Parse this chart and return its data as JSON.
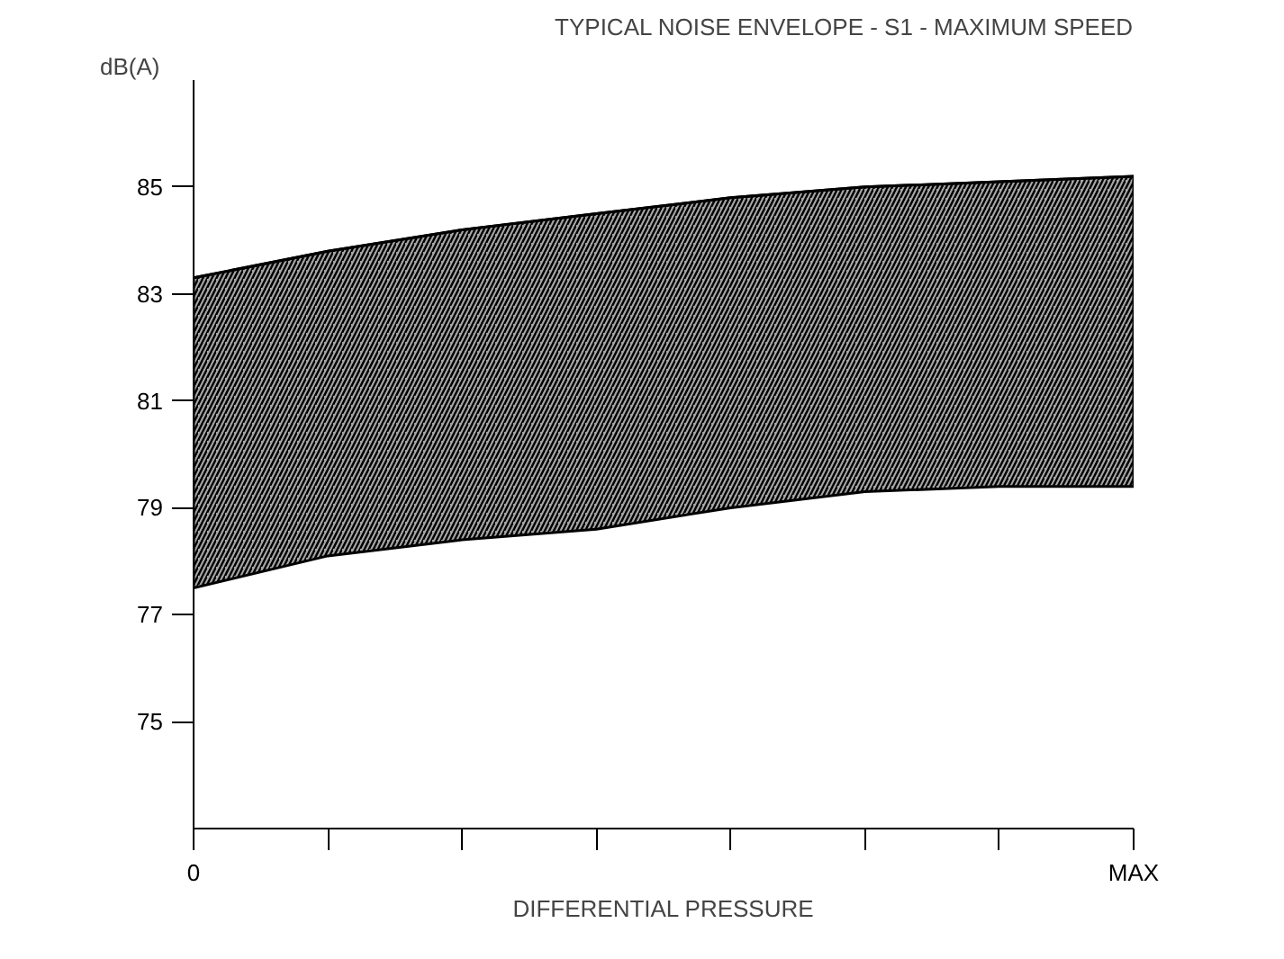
{
  "chart_data": {
    "type": "line",
    "title": "TYPICAL NOISE ENVELOPE - S1 - MAXIMUM SPEED",
    "xlabel": "DIFFERENTIAL PRESSURE",
    "ylabel": "dB(A)",
    "categories": [
      "0",
      null,
      null,
      null,
      null,
      null,
      null,
      "MAX"
    ],
    "series": [
      {
        "color": "#000000",
        "values": [
          83.3,
          83.8,
          84.2,
          84.5,
          84.8,
          85.0,
          85.1,
          85.2
        ],
        "upper": [
          83.3,
          83.8,
          84.2,
          84.5,
          84.8,
          85.0,
          85.1,
          85.2
        ],
        "lower": [
          77.5,
          78.1,
          78.4,
          78.6,
          79.0,
          79.3,
          79.4,
          79.4
        ]
      }
    ],
    "ylim": [
      73,
      87
    ],
    "yticks": [
      75,
      77,
      79,
      81,
      83,
      85
    ],
    "grid": false
  }
}
